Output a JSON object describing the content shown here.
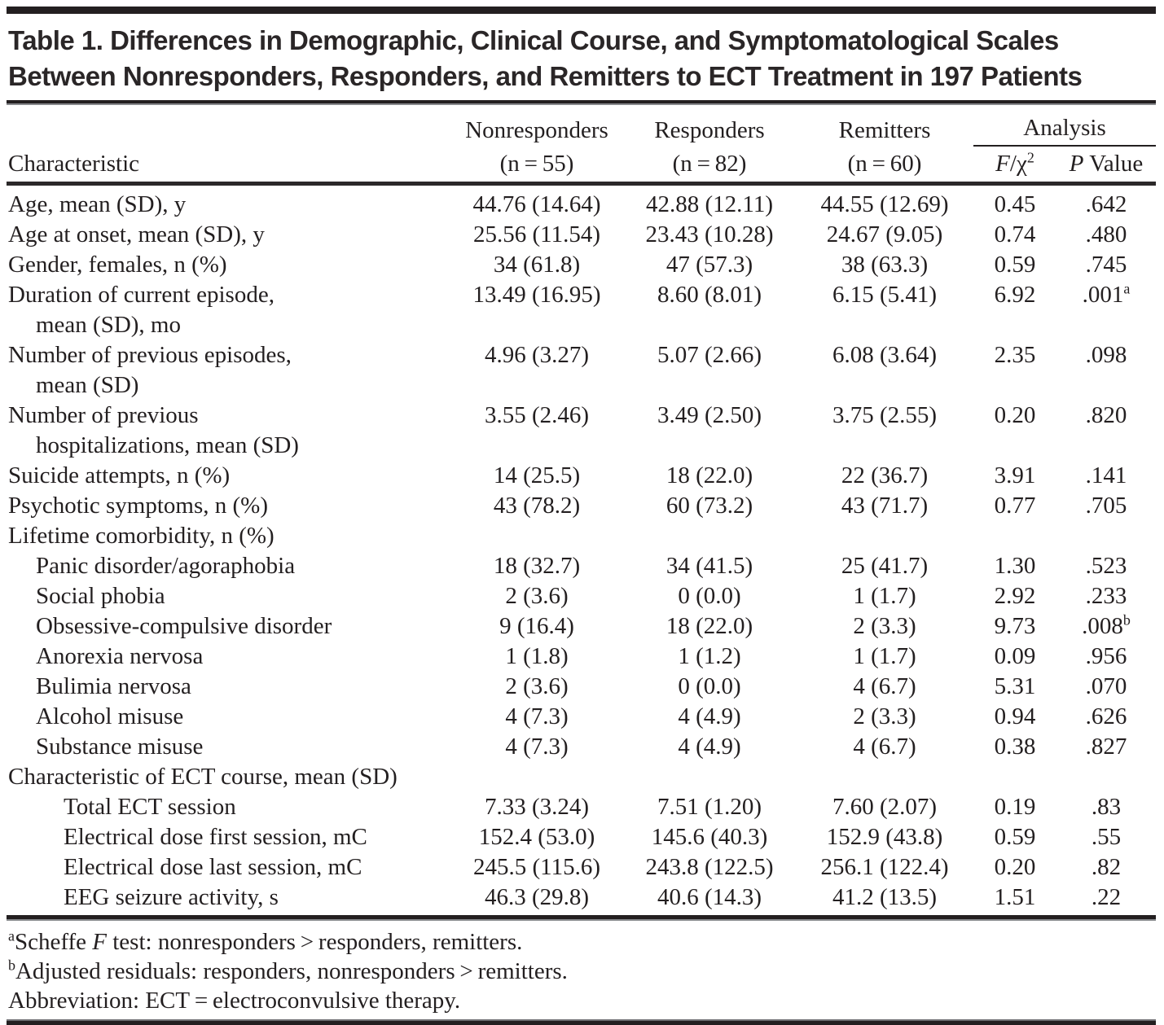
{
  "title": {
    "line1": "Table 1. Differences in Demographic, Clinical Course, and Symptomatological Scales",
    "line2": "Between Nonresponders, Responders, and Remitters to ECT Treatment in 197 Patients"
  },
  "table": {
    "col_keys": [
      "nonresponders",
      "responders",
      "remitters",
      "f_chi2",
      "p_value"
    ],
    "header": {
      "characteristic": "Characteristic",
      "groups": [
        {
          "name": "Nonresponders",
          "n": "(n = 55)"
        },
        {
          "name": "Responders",
          "n": "(n = 82)"
        },
        {
          "name": "Remitters",
          "n": "(n = 60)"
        }
      ],
      "analysis": "Analysis",
      "f_chi2": {
        "f": "F",
        "rest": "/χ",
        "sup": "2"
      },
      "p_value": {
        "p": "P",
        "rest": " Value"
      }
    },
    "rows": [
      {
        "label": "Age, mean (SD), y",
        "indent": 0,
        "values": [
          "44.76 (14.64)",
          "42.88 (12.11)",
          "44.55 (12.69)",
          "0.45",
          ".642"
        ]
      },
      {
        "label": "Age at onset, mean (SD), y",
        "indent": 0,
        "values": [
          "25.56 (11.54)",
          "23.43 (10.28)",
          "24.67 (9.05)",
          "0.74",
          ".480"
        ]
      },
      {
        "label": "Gender, females, n (%)",
        "indent": 0,
        "values": [
          "34 (61.8)",
          "47 (57.3)",
          "38 (63.3)",
          "0.59",
          ".745"
        ]
      },
      {
        "label": "Duration of current episode,",
        "label2": "mean (SD), mo",
        "indent": 0,
        "values": [
          "13.49 (16.95)",
          "8.60 (8.01)",
          "6.15 (5.41)",
          "6.92",
          ".001"
        ],
        "p_sup": "a"
      },
      {
        "label": "Number of previous episodes,",
        "label2": "mean (SD)",
        "indent": 0,
        "values": [
          "4.96 (3.27)",
          "5.07 (2.66)",
          "6.08 (3.64)",
          "2.35",
          ".098"
        ]
      },
      {
        "label": "Number of previous",
        "label2": "hospitalizations, mean (SD)",
        "indent": 0,
        "values": [
          "3.55 (2.46)",
          "3.49 (2.50)",
          "3.75 (2.55)",
          "0.20",
          ".820"
        ]
      },
      {
        "label": "Suicide attempts, n (%)",
        "indent": 0,
        "values": [
          "14 (25.5)",
          "18 (22.0)",
          "22 (36.7)",
          "3.91",
          ".141"
        ]
      },
      {
        "label": "Psychotic symptoms, n (%)",
        "indent": 0,
        "values": [
          "43 (78.2)",
          "60 (73.2)",
          "43 (71.7)",
          "0.77",
          ".705"
        ]
      },
      {
        "label": "Lifetime comorbidity, n (%)",
        "section": true
      },
      {
        "label": "Panic disorder/agoraphobia",
        "indent": 1,
        "values": [
          "18 (32.7)",
          "34 (41.5)",
          "25 (41.7)",
          "1.30",
          ".523"
        ]
      },
      {
        "label": "Social phobia",
        "indent": 1,
        "values": [
          "2 (3.6)",
          "0 (0.0)",
          "1 (1.7)",
          "2.92",
          ".233"
        ]
      },
      {
        "label": "Obsessive-compulsive disorder",
        "indent": 1,
        "values": [
          "9 (16.4)",
          "18 (22.0)",
          "2 (3.3)",
          "9.73",
          ".008"
        ],
        "p_sup": "b"
      },
      {
        "label": "Anorexia nervosa",
        "indent": 1,
        "values": [
          "1 (1.8)",
          "1 (1.2)",
          "1 (1.7)",
          "0.09",
          ".956"
        ]
      },
      {
        "label": "Bulimia nervosa",
        "indent": 1,
        "values": [
          "2 (3.6)",
          "0 (0.0)",
          "4 (6.7)",
          "5.31",
          ".070"
        ]
      },
      {
        "label": "Alcohol misuse",
        "indent": 1,
        "values": [
          "4 (7.3)",
          "4 (4.9)",
          "2 (3.3)",
          "0.94",
          ".626"
        ]
      },
      {
        "label": "Substance misuse",
        "indent": 1,
        "values": [
          "4 (7.3)",
          "4 (4.9)",
          "4 (6.7)",
          "0.38",
          ".827"
        ]
      },
      {
        "label": "Characteristic of ECT course, mean (SD)",
        "section": true
      },
      {
        "label": "Total ECT session",
        "indent": 2,
        "values": [
          "7.33 (3.24)",
          "7.51 (1.20)",
          "7.60 (2.07)",
          "0.19",
          ".83"
        ]
      },
      {
        "label": "Electrical dose first session, mC",
        "indent": 2,
        "values": [
          "152.4 (53.0)",
          "145.6 (40.3)",
          "152.9 (43.8)",
          "0.59",
          ".55"
        ]
      },
      {
        "label": "Electrical dose last session, mC",
        "indent": 2,
        "values": [
          "245.5 (115.6)",
          "243.8 (122.5)",
          "256.1 (122.4)",
          "0.20",
          ".82"
        ]
      },
      {
        "label": "EEG seizure activity, s",
        "indent": 2,
        "values": [
          "46.3 (29.8)",
          "40.6 (14.3)",
          "41.2 (13.5)",
          "1.51",
          ".22"
        ]
      }
    ]
  },
  "footnotes": [
    {
      "sup": "a",
      "segments": [
        {
          "text": "Scheffe "
        },
        {
          "text": "F",
          "italic": true
        },
        {
          "text": " test: nonresponders > responders, remitters."
        }
      ]
    },
    {
      "sup": "b",
      "segments": [
        {
          "text": "Adjusted residuals: responders, nonresponders > remitters."
        }
      ]
    },
    {
      "sup": null,
      "segments": [
        {
          "text": "Abbreviation: ECT = electroconvulsive therapy."
        }
      ]
    }
  ]
}
